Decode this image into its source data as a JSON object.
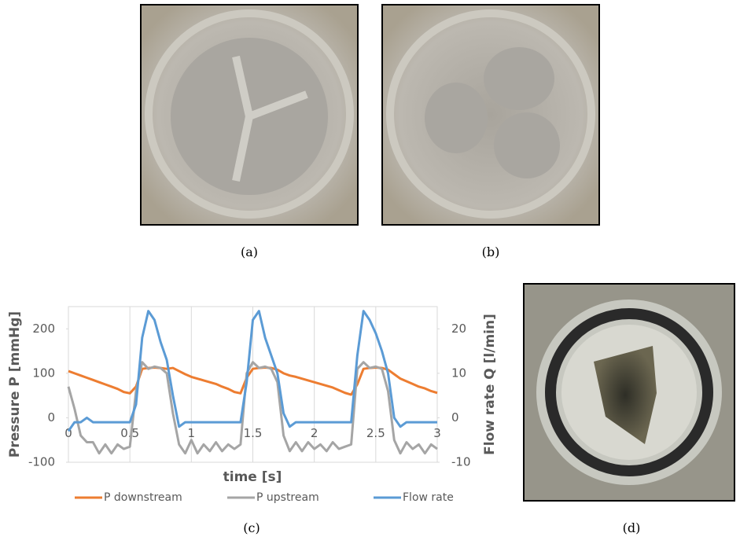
{
  "captions": [
    "(a)",
    "(b)",
    "(c)",
    "(d)"
  ],
  "chart_data": {
    "type": "line",
    "xlabel": "time [s]",
    "ylabel": "Pressure P [mmHg]",
    "y2label": "Flow rate Q [l/min]",
    "x": [
      0,
      0.05,
      0.1,
      0.15,
      0.2,
      0.25,
      0.3,
      0.35,
      0.4,
      0.45,
      0.5,
      0.55,
      0.6,
      0.65,
      0.7,
      0.75,
      0.8,
      0.85,
      0.9,
      0.95,
      1,
      1.05,
      1.1,
      1.15,
      1.2,
      1.25,
      1.3,
      1.35,
      1.4,
      1.45,
      1.5,
      1.55,
      1.6,
      1.65,
      1.7,
      1.75,
      1.8,
      1.85,
      1.9,
      1.95,
      2,
      2.05,
      2.1,
      2.15,
      2.2,
      2.25,
      2.3,
      2.35,
      2.4,
      2.45,
      2.5,
      2.55,
      2.6,
      2.65,
      2.7,
      2.75,
      2.8,
      2.85,
      2.9,
      2.95,
      3
    ],
    "series": [
      {
        "name": "P downstream",
        "color": "#ed7d31",
        "values": [
          105,
          100,
          95,
          90,
          85,
          80,
          75,
          70,
          65,
          58,
          55,
          70,
          110,
          112,
          113,
          112,
          110,
          112,
          105,
          98,
          92,
          88,
          84,
          80,
          76,
          70,
          65,
          58,
          55,
          90,
          110,
          112,
          113,
          112,
          108,
          100,
          95,
          92,
          88,
          84,
          80,
          76,
          72,
          68,
          62,
          56,
          52,
          75,
          110,
          112,
          113,
          112,
          108,
          98,
          88,
          82,
          76,
          70,
          66,
          60,
          56
        ]
      },
      {
        "name": "P upstream",
        "color": "#a5a5a5",
        "values": [
          70,
          20,
          -40,
          -55,
          -55,
          -80,
          -60,
          -80,
          -60,
          -70,
          -65,
          60,
          125,
          110,
          115,
          112,
          100,
          10,
          -60,
          -80,
          -50,
          -80,
          -60,
          -75,
          -55,
          -75,
          -60,
          -70,
          -60,
          100,
          125,
          112,
          115,
          110,
          80,
          -40,
          -75,
          -55,
          -75,
          -55,
          -70,
          -60,
          -75,
          -55,
          -70,
          -65,
          -60,
          110,
          125,
          112,
          115,
          110,
          60,
          -50,
          -80,
          -55,
          -70,
          -60,
          -80,
          -60,
          -70
        ]
      },
      {
        "name": "Flow rate",
        "color": "#5b9bd5",
        "axis": "y2",
        "values": [
          -3,
          -1,
          -1,
          0,
          -1,
          -1,
          -1,
          -1,
          -1,
          -1,
          -1,
          3,
          18,
          24,
          22,
          17,
          13,
          5,
          -2,
          -1,
          -1,
          -1,
          -1,
          -1,
          -1,
          -1,
          -1,
          -1,
          -1,
          8,
          22,
          24,
          18,
          14,
          10,
          1,
          -2,
          -1,
          -1,
          -1,
          -1,
          -1,
          -1,
          -1,
          -1,
          -1,
          -1,
          14,
          24,
          22,
          19,
          15,
          10,
          0,
          -2,
          -1,
          -1,
          -1,
          -1,
          -1,
          -1
        ]
      }
    ],
    "xlim": [
      0,
      3
    ],
    "xticks": [
      0,
      0.5,
      1,
      1.5,
      2,
      2.5,
      3
    ],
    "ylim": [
      -100,
      250
    ],
    "yticks": [
      -100,
      0,
      100,
      200
    ],
    "y2lim": [
      -10,
      25
    ],
    "y2ticks": [
      -10,
      0,
      10,
      20
    ],
    "grid": true,
    "legend": "bottom"
  }
}
